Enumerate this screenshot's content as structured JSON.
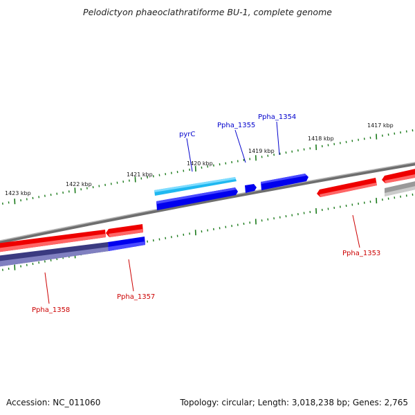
{
  "title": "Pelodictyon phaeoclathratiforme BU-1, complete genome",
  "footer": {
    "accession": "Accession: NC_011060",
    "summary": "Topology: circular; Length: 3,018,238 bp; Genes: 2,765"
  },
  "colors": {
    "backbone": "#808080",
    "ticks": "#1a7a1a",
    "forward_gene": "#ff0000",
    "reverse_gene": "#0000ee",
    "rna_gene": "#1fb8f0",
    "pseudo_gene": "#aaaaaa",
    "dark_gene": "#3a3a80",
    "label_red": "#cc0000",
    "label_blue": "#0000cc"
  },
  "scale": {
    "tick_labels": [
      "1417 kbp",
      "1418 kbp",
      "1419 kbp",
      "1420 kbp",
      "1421 kbp",
      "1422 kbp",
      "1423 kbp"
    ]
  },
  "gene_labels": [
    {
      "name": "Ppha_1354",
      "color": "blue"
    },
    {
      "name": "Ppha_1355",
      "color": "blue"
    },
    {
      "name": "pyrC",
      "color": "blue"
    },
    {
      "name": "Ppha_1353",
      "color": "red"
    },
    {
      "name": "Ppha_1357",
      "color": "red"
    },
    {
      "name": "Ppha_1358",
      "color": "red"
    }
  ]
}
